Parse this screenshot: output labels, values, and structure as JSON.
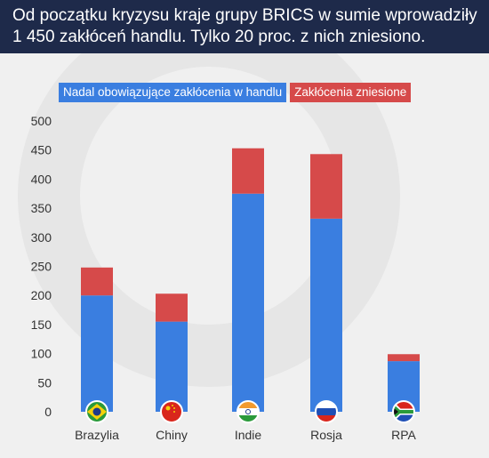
{
  "header": {
    "title_line1": "Od początku kryzysu kraje grupy BRICS w sumie wprowadziły",
    "title_line2": "1 450 zakłóceń handlu. Tylko 20 proc. z nich zniesiono."
  },
  "colors": {
    "header_bg": "#1e2a4a",
    "existing": "#3a7ee0",
    "removed": "#d64a4a"
  },
  "chart_data": {
    "type": "bar",
    "stacked": true,
    "categories": [
      "Brazylia",
      "Chiny",
      "Indie",
      "Rosja",
      "RPA"
    ],
    "series": [
      {
        "name": "Nadal obowiązujące zakłócenia w handlu",
        "values": [
          200,
          155,
          375,
          332,
          87
        ]
      },
      {
        "name": "Zakłócenia zniesione",
        "values": [
          48,
          48,
          78,
          111,
          12
        ]
      }
    ],
    "ylim": [
      0,
      500
    ],
    "yticks": [
      0,
      50,
      100,
      150,
      200,
      250,
      300,
      350,
      400,
      450,
      500
    ],
    "grid": false,
    "legend": "top-left",
    "flags": [
      "brazil-flag",
      "china-flag",
      "india-flag",
      "russia-flag",
      "south-africa-flag"
    ]
  }
}
